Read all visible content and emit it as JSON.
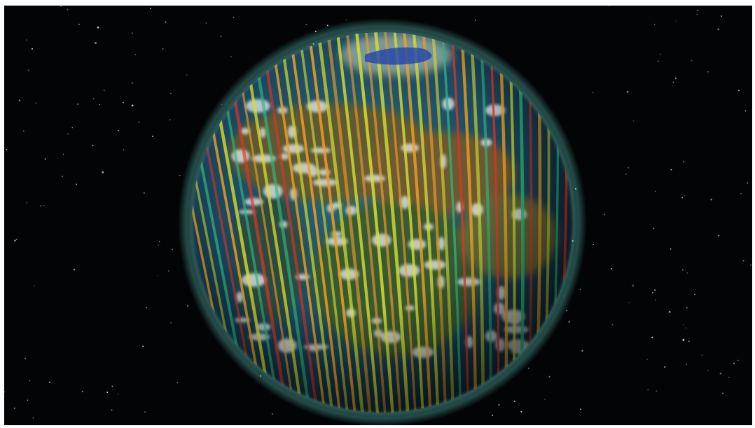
{
  "scene": {
    "subject": "globe-with-orbit-swaths",
    "background": "starfield",
    "colors": {
      "space": "#030406",
      "ocean": "#1d4a63",
      "land": "#4f5e2f",
      "atmosphere": "#5fd1c4",
      "swath_low": "#1a3fb0",
      "swath_mid_low": "#2fb77a",
      "swath_mid": "#d9e02a",
      "swath_mid_high": "#f0a21c",
      "swath_high": "#e0361f"
    }
  }
}
